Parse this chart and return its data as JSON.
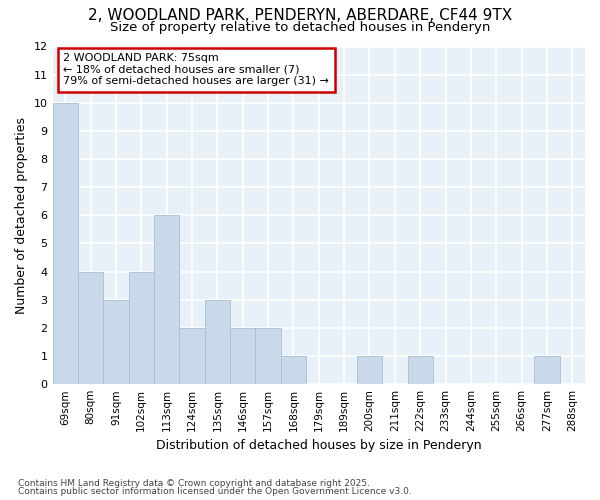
{
  "title1": "2, WOODLAND PARK, PENDERYN, ABERDARE, CF44 9TX",
  "title2": "Size of property relative to detached houses in Penderyn",
  "xlabel": "Distribution of detached houses by size in Penderyn",
  "ylabel": "Number of detached properties",
  "categories": [
    "69sqm",
    "80sqm",
    "91sqm",
    "102sqm",
    "113sqm",
    "124sqm",
    "135sqm",
    "146sqm",
    "157sqm",
    "168sqm",
    "179sqm",
    "189sqm",
    "200sqm",
    "211sqm",
    "222sqm",
    "233sqm",
    "244sqm",
    "255sqm",
    "266sqm",
    "277sqm",
    "288sqm"
  ],
  "values": [
    10,
    4,
    3,
    4,
    6,
    2,
    3,
    2,
    2,
    1,
    0,
    0,
    1,
    0,
    1,
    0,
    0,
    0,
    0,
    1,
    0
  ],
  "bar_color": "#c9d9ea",
  "bar_edge_color": "#a8bfd4",
  "annotation_text": "2 WOODLAND PARK: 75sqm\n← 18% of detached houses are smaller (7)\n79% of semi-detached houses are larger (31) →",
  "annotation_box_color": "#ffffff",
  "annotation_box_edge_color": "#cc0000",
  "ylim": [
    0,
    12
  ],
  "yticks": [
    0,
    1,
    2,
    3,
    4,
    5,
    6,
    7,
    8,
    9,
    10,
    11,
    12
  ],
  "footer1": "Contains HM Land Registry data © Crown copyright and database right 2025.",
  "footer2": "Contains public sector information licensed under the Open Government Licence v3.0.",
  "bg_color": "#ffffff",
  "plot_bg_color": "#e8f0f8",
  "grid_color": "#ffffff",
  "title1_fontsize": 11,
  "title2_fontsize": 9.5,
  "ylabel_fontsize": 9,
  "xlabel_fontsize": 9,
  "tick_fontsize": 8,
  "annotation_fontsize": 8
}
